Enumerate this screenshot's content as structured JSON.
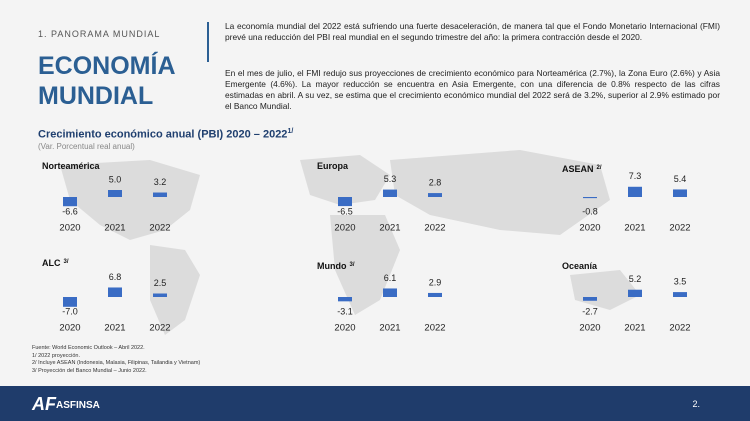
{
  "section_label": "1. PANORAMA MUNDIAL",
  "title_lines": [
    "ECONOMÍA",
    "MUNDIAL"
  ],
  "paragraphs": [
    "La economía mundial del 2022 está sufriendo una fuerte desaceleración, de manera tal que el Fondo Monetario Internacional (FMI) prevé una reducción del PBI real mundial en el segundo trimestre del año: la primera contracción desde el 2020.",
    "En el mes de julio, el FMI redujo sus proyecciones de crecimiento económico para Norteamérica (2.7%), la Zona Euro (2.6%) y Asia Emergente (4.6%). La mayor reducción se encuentra en Asia Emergente, con una diferencia de 0.8% respecto de las cifras estimadas en abril. A su vez, se estima que el crecimiento económico mundial del 2022 será de 3.2%, superior al 2.9% estimado por el Banco Mundial."
  ],
  "charts_heading": {
    "title": "Crecimiento económico anual (PBI) 2020 – 2022",
    "note": "1/",
    "subtitle": "(Var. Porcentual real anual)"
  },
  "chart_data": [
    {
      "type": "bar",
      "title": "Norteamérica",
      "categories": [
        "2020",
        "2021",
        "2022"
      ],
      "values": [
        -6.6,
        5,
        3.2
      ],
      "value_labels": [
        "-6.6",
        "5.0",
        "3.2"
      ],
      "color": "#3a6cc4"
    },
    {
      "type": "bar",
      "title": "Europa",
      "categories": [
        "2020",
        "2021",
        "2022"
      ],
      "values": [
        -6.5,
        5.3,
        2.8
      ],
      "color": "#3a6cc4"
    },
    {
      "type": "bar",
      "title": "ASEAN",
      "note": "2/",
      "categories": [
        "2020",
        "2021",
        "2022"
      ],
      "values": [
        -0.8,
        7.3,
        5.4
      ],
      "color": "#3a6cc4"
    },
    {
      "type": "bar",
      "title": "ALC",
      "note": "3/",
      "categories": [
        "2020",
        "2021",
        "2022"
      ],
      "values": [
        -7,
        6.8,
        2.5
      ],
      "value_labels": [
        "-7.0",
        "6.8",
        "2.5"
      ],
      "color": "#3a6cc4"
    },
    {
      "type": "bar",
      "title": "Mundo",
      "note": "3/",
      "categories": [
        "2020",
        "2021",
        "2022"
      ],
      "values": [
        -3.1,
        6.1,
        2.9
      ],
      "color": "#3a6cc4"
    },
    {
      "type": "bar",
      "title": "Oceanía",
      "categories": [
        "2020",
        "2021",
        "2022"
      ],
      "values": [
        -2.7,
        5.2,
        3.5
      ],
      "color": "#3a6cc4"
    }
  ],
  "footnotes": [
    "Fuente: World Economic Outlook – Abril 2022.",
    "1/ 2022 proyección.",
    "2/ Incluye ASEAN (Indonesia, Malasia, Filipinas, Tailandia y Vietnam)",
    "3/ Proyección del Banco Mundial – Junio 2022."
  ],
  "logo": "ASFINSA",
  "page_number": "2."
}
